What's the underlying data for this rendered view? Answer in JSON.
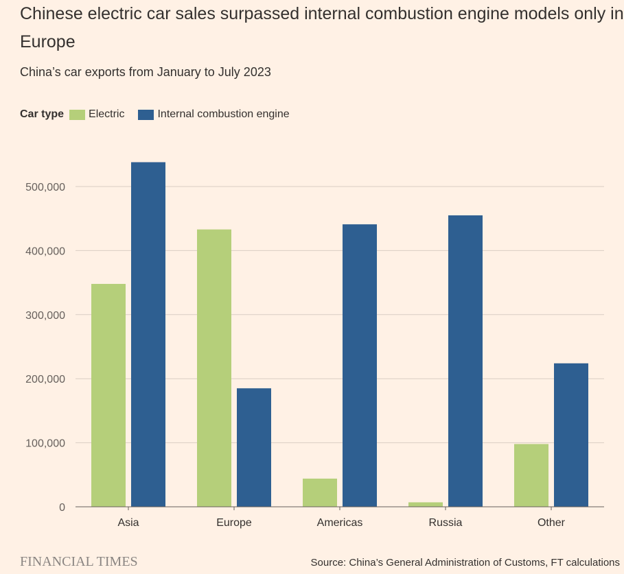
{
  "header": {
    "title": "Chinese electric car sales surpassed internal combustion engine models only in Europe",
    "subtitle": "China’s car exports from January to July 2023"
  },
  "legend": {
    "title": "Car type",
    "items": [
      {
        "label": "Electric",
        "color": "#b5cf7a"
      },
      {
        "label": "Internal combustion engine",
        "color": "#2e5f91"
      }
    ]
  },
  "footer": {
    "brand": "FINANCIAL TIMES",
    "source": "Source: China’s General Administration of Customs, FT calculations"
  },
  "chart_data": {
    "type": "bar",
    "title": "Chinese electric car sales surpassed internal combustion engine models only in Europe",
    "subtitle": "China’s car exports from January to July 2023",
    "categories": [
      "Asia",
      "Europe",
      "Americas",
      "Russia",
      "Other"
    ],
    "series": [
      {
        "name": "Electric",
        "color": "#b5cf7a",
        "values": [
          348000,
          433000,
          44000,
          7000,
          98000
        ]
      },
      {
        "name": "Internal combustion engine",
        "color": "#2e5f91",
        "values": [
          538000,
          185000,
          441000,
          455000,
          224000
        ]
      }
    ],
    "yticks": [
      "0",
      "100,000",
      "200,000",
      "300,000",
      "400,000",
      "500,000"
    ],
    "ytick_values": [
      0,
      100000,
      200000,
      300000,
      400000,
      500000
    ],
    "ylim": [
      0,
      500000
    ],
    "grid": true,
    "legend_position": "top-left"
  }
}
